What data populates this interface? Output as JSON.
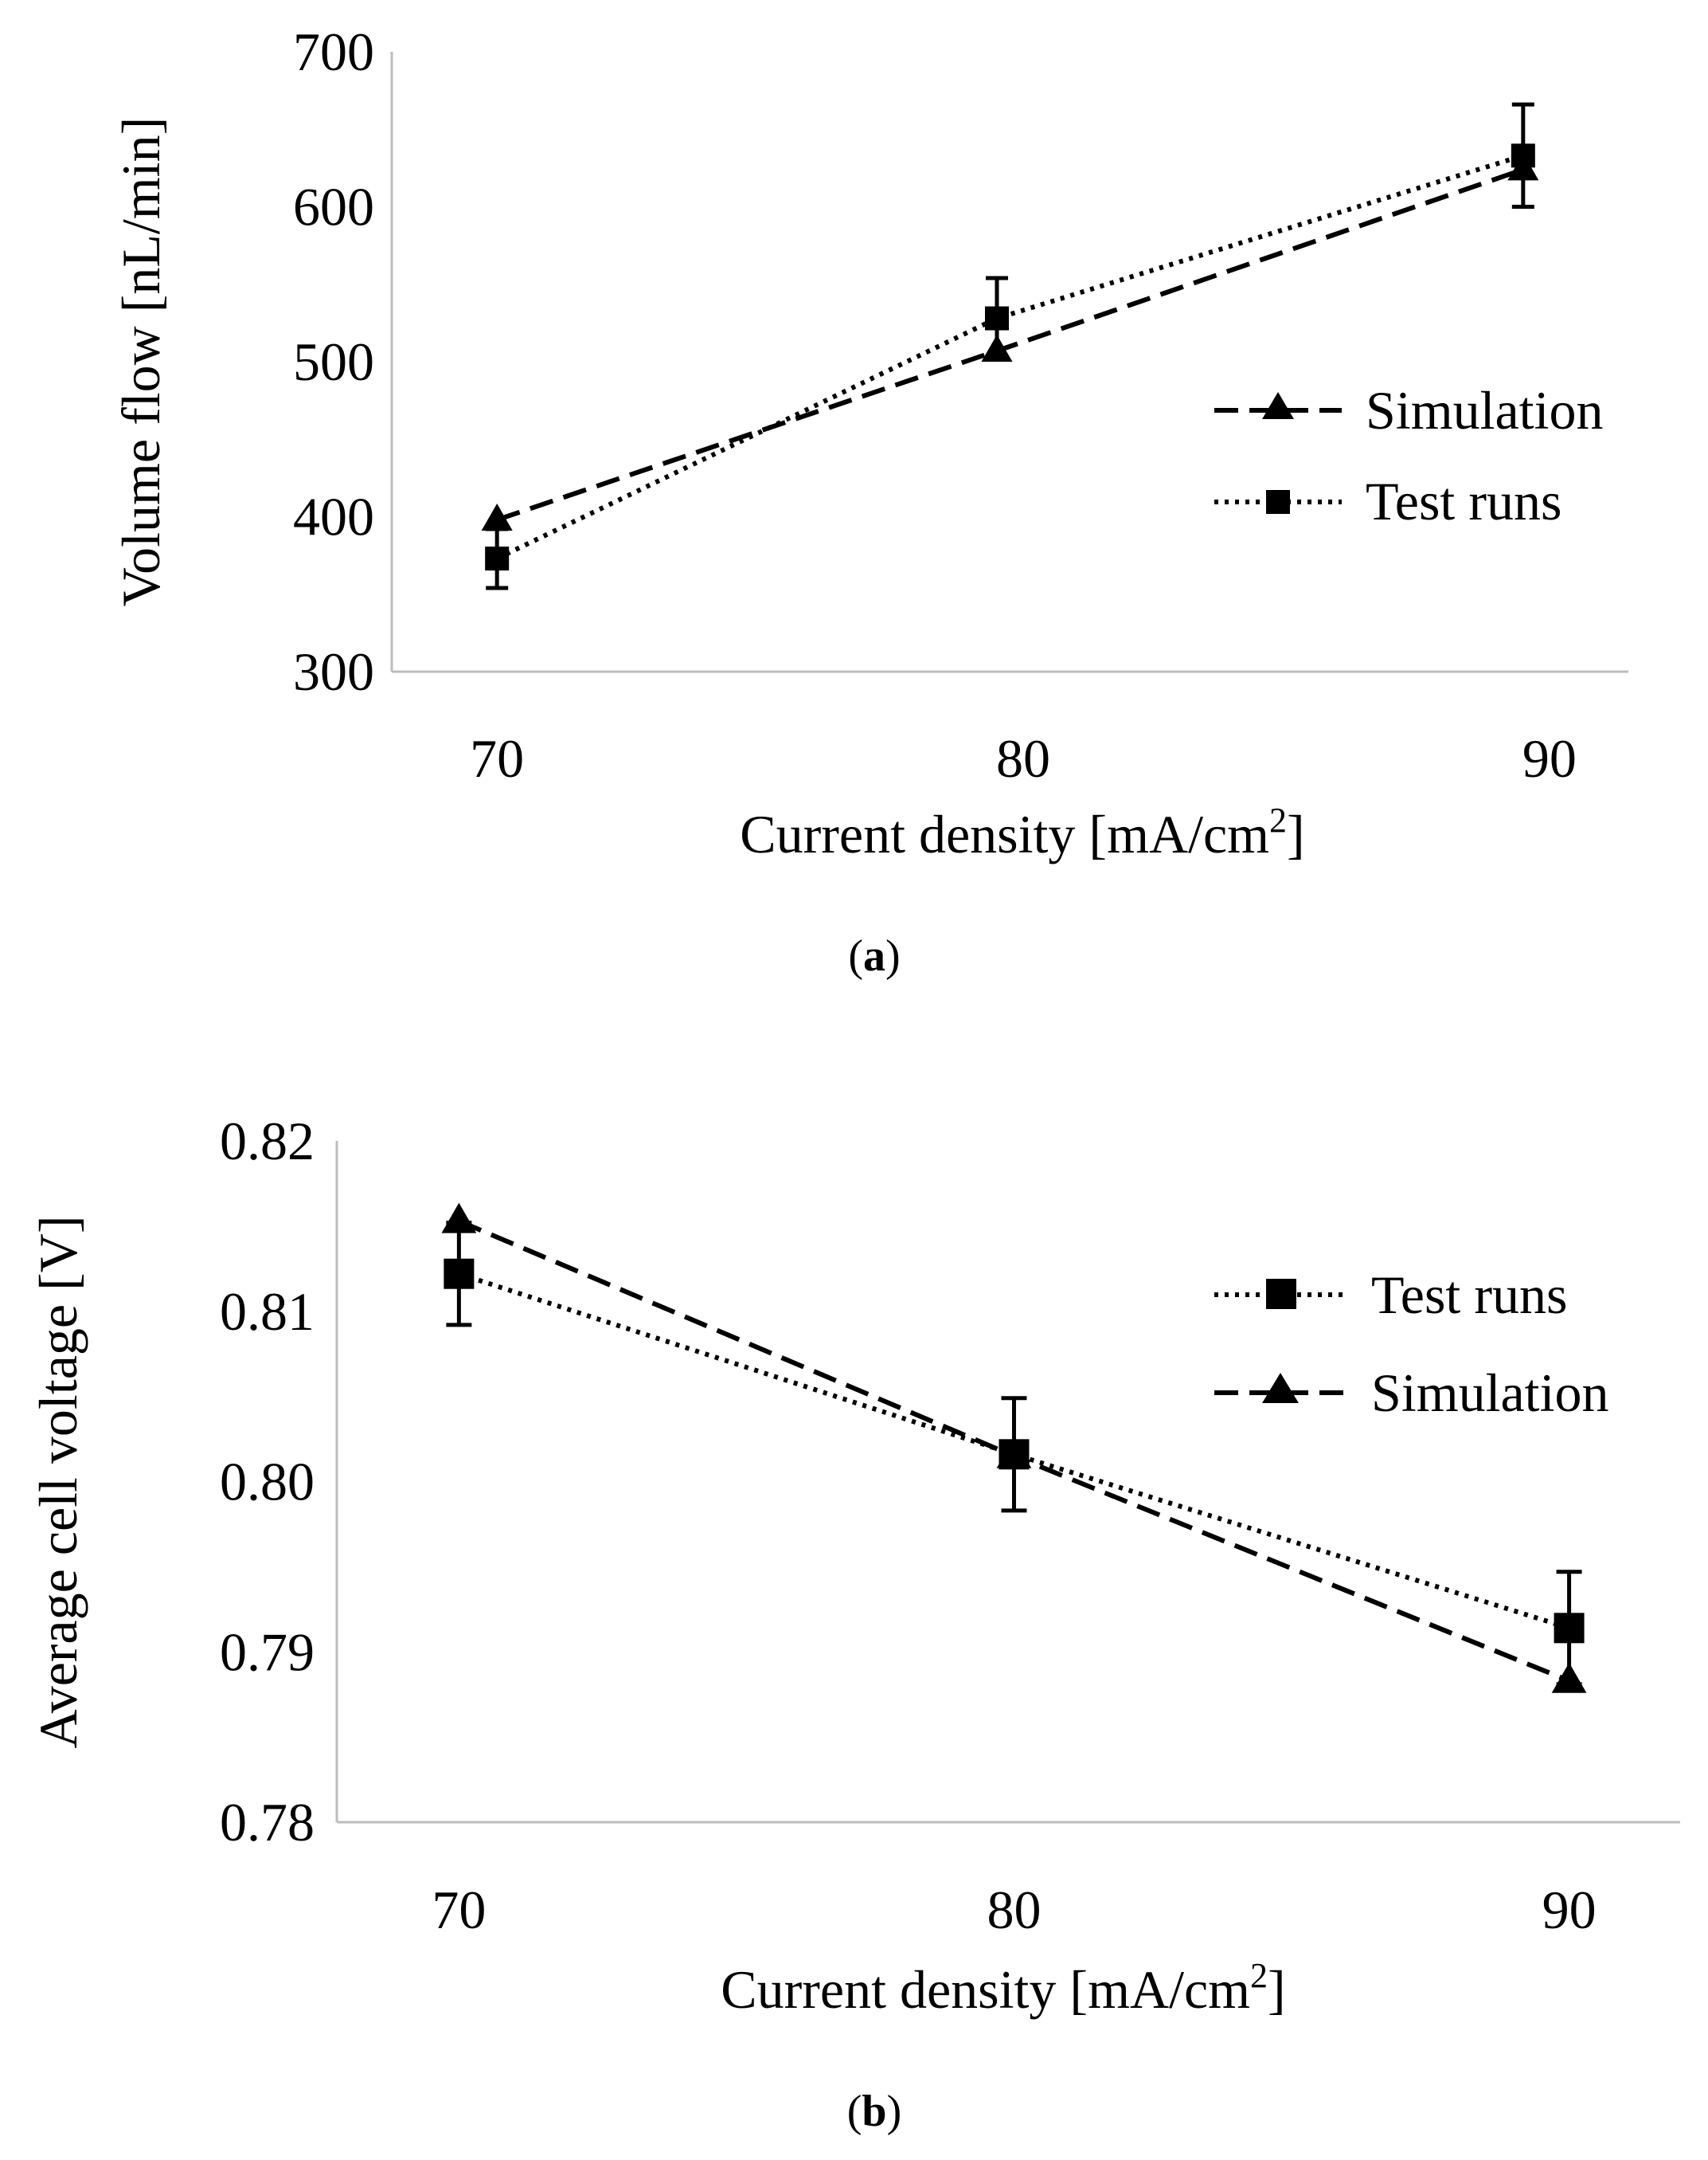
{
  "chart_data": [
    {
      "panel": "(a)",
      "panel_letter": "a",
      "type": "line",
      "x": [
        70,
        80,
        90
      ],
      "xlim": [
        68,
        91.5
      ],
      "ylim": [
        300,
        700
      ],
      "x_ticks": [
        "70",
        "80",
        "90"
      ],
      "y_ticks": [
        "300",
        "400",
        "500",
        "600",
        "700"
      ],
      "ylabel": "Volume flow [nL/min]",
      "xlabel": "Current density [mA/cm",
      "xlabel_sup": "2",
      "xlabel_end": "]",
      "series": [
        {
          "name": "Simulation",
          "marker": "triangle",
          "line": "dashed",
          "x": [
            70,
            79.5,
            89.5
          ],
          "values": [
            398,
            507,
            624
          ]
        },
        {
          "name": "Test runs",
          "marker": "square",
          "line": "dotted",
          "x": [
            70,
            79.5,
            89.5
          ],
          "values": [
            373,
            528,
            633
          ],
          "errors": [
            19,
            26,
            33
          ]
        }
      ],
      "legend": [
        "Simulation",
        "Test runs"
      ]
    },
    {
      "panel": "(b)",
      "panel_letter": "b",
      "type": "line",
      "x": [
        70,
        80,
        90
      ],
      "xlim": [
        67.8,
        92
      ],
      "ylim": [
        0.78,
        0.82
      ],
      "x_ticks": [
        "70",
        "80",
        "90"
      ],
      "y_ticks": [
        "0.78",
        "0.79",
        "0.80",
        "0.81",
        "0.82"
      ],
      "ylabel": "Average cell voltage [V]",
      "xlabel": "Current density [mA/cm",
      "xlabel_sup": "2",
      "xlabel_end": "]",
      "series": [
        {
          "name": "Test runs",
          "marker": "square",
          "line": "dotted",
          "x": [
            70,
            80,
            90
          ],
          "values": [
            0.8122,
            0.8016,
            0.7914
          ],
          "errors": [
            0.003,
            0.0033,
            0.0033
          ]
        },
        {
          "name": "Simulation",
          "marker": "triangle",
          "line": "dashed",
          "x": [
            70,
            80,
            90
          ],
          "values": [
            0.8153,
            0.8015,
            0.7883
          ]
        }
      ],
      "legend": [
        "Test runs",
        "Simulation"
      ]
    }
  ]
}
